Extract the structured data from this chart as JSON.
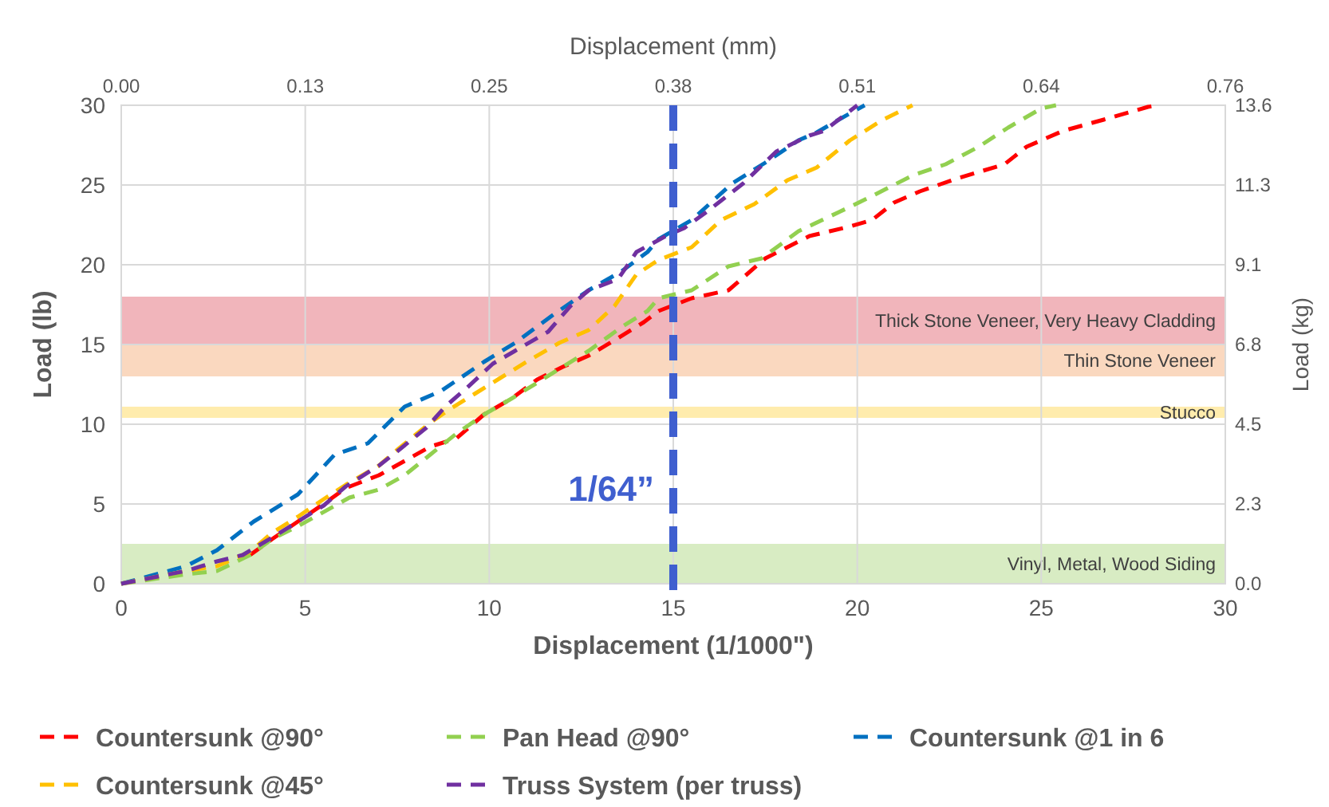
{
  "chart_data": {
    "type": "line",
    "xlabel": "Displacement (1/1000\")",
    "ylabel": "Load (lb)",
    "y2label": "Load (kg)",
    "x2label": "Displacement (mm)",
    "xlim": [
      0,
      30
    ],
    "xticks": [
      0,
      5,
      10,
      15,
      20,
      25,
      30
    ],
    "ylim": [
      0,
      30
    ],
    "yticks": [
      0,
      5,
      10,
      15,
      20,
      25,
      30
    ],
    "x2lim": [
      0,
      0.762
    ],
    "x2ticks": [
      {
        "value": 0,
        "label": "0.00"
      },
      {
        "value": 0.127,
        "label": "0.13"
      },
      {
        "value": 0.254,
        "label": "0.25"
      },
      {
        "value": 0.381,
        "label": "0.38"
      },
      {
        "value": 0.508,
        "label": "0.51"
      },
      {
        "value": 0.635,
        "label": "0.64"
      },
      {
        "value": 0.762,
        "label": "0.76"
      }
    ],
    "y2lim": [
      0,
      13.608
    ],
    "y2ticks": [
      {
        "value": 0,
        "label": "0.0"
      },
      {
        "value": 2.268,
        "label": "2.3"
      },
      {
        "value": 4.536,
        "label": "4.5"
      },
      {
        "value": 6.804,
        "label": "6.8"
      },
      {
        "value": 9.072,
        "label": "9.1"
      },
      {
        "value": 11.34,
        "label": "11.3"
      },
      {
        "value": 13.608,
        "label": "13.6"
      }
    ],
    "grid": true,
    "legend": "bottom",
    "line_style": "dashed",
    "series": [
      {
        "name": "Countersunk @90°",
        "color": "#ff0000",
        "x": [
          3.5,
          4.1,
          4.8,
          5.5,
          6.1,
          7.0,
          8.4,
          9.1,
          9.85,
          10.6,
          11.3,
          12.0,
          12.7,
          13.5,
          14.2,
          14.6,
          15.5,
          16.5,
          17.5,
          18.7,
          19.8,
          20.4,
          21.0,
          21.7,
          22.7,
          24.0,
          24.6,
          25.6,
          26.7,
          27.9,
          28.2
        ],
        "values": [
          1.8,
          2.8,
          3.9,
          5.0,
          6.0,
          6.8,
          8.6,
          9.1,
          10.6,
          11.6,
          12.8,
          13.6,
          14.3,
          15.4,
          16.4,
          17.1,
          17.9,
          18.4,
          20.4,
          21.8,
          22.4,
          22.8,
          23.9,
          24.6,
          25.4,
          26.3,
          27.4,
          28.4,
          29.1,
          29.9,
          30
        ]
      },
      {
        "name": "Pan Head @90°",
        "color": "#92d050",
        "x": [
          0,
          1.8,
          2.6,
          3.5,
          4.1,
          4.8,
          6.2,
          7.0,
          7.7,
          8.4,
          9.1,
          9.85,
          10.6,
          11.3,
          12.0,
          12.7,
          13.6,
          14.3,
          14.6,
          15.5,
          16.5,
          17.4,
          18.4,
          19.5,
          20.4,
          21.5,
          22.4,
          23.3,
          24.1,
          25.0,
          25.4
        ],
        "values": [
          0,
          0.6,
          0.8,
          1.8,
          2.8,
          3.6,
          5.4,
          5.9,
          6.8,
          8.1,
          9.4,
          10.6,
          11.6,
          12.6,
          13.6,
          14.6,
          16.1,
          17.1,
          17.9,
          18.4,
          19.9,
          20.4,
          22.1,
          23.3,
          24.3,
          25.6,
          26.3,
          27.4,
          28.6,
          29.8,
          30
        ]
      },
      {
        "name": "Countersunk @1 in 6",
        "color": "#0070c0",
        "x": [
          0,
          1.76,
          2.6,
          3.6,
          4.8,
          5.8,
          6.7,
          7.7,
          8.7,
          9.85,
          10.7,
          11.7,
          12.7,
          13.6,
          14.3,
          14.6,
          15.5,
          16.6,
          17.5,
          18.4,
          18.9,
          19.5,
          20.2
        ],
        "values": [
          0,
          1.1,
          2.1,
          3.9,
          5.6,
          8.1,
          8.8,
          11.1,
          12.1,
          13.9,
          15.1,
          16.8,
          18.4,
          19.6,
          20.8,
          21.6,
          22.8,
          25.1,
          26.4,
          27.8,
          28.3,
          29.1,
          30
        ]
      },
      {
        "name": "Countersunk @45°",
        "color": "#ffc000",
        "x": [
          0,
          1.76,
          2.6,
          3.5,
          4.1,
          4.8,
          5.5,
          6.1,
          7.0,
          7.5,
          8.4,
          8.9,
          9.6,
          10.3,
          11.0,
          11.9,
          12.7,
          13.4,
          14.0,
          14.6,
          15.5,
          16.3,
          17.2,
          18.1,
          18.9,
          19.8,
          20.7,
          21.5
        ],
        "values": [
          0,
          0.8,
          1.1,
          2.0,
          3.2,
          4.2,
          5.3,
          6.2,
          7.4,
          8.4,
          10.1,
          10.9,
          11.9,
          12.9,
          13.9,
          15.1,
          15.9,
          17.4,
          19.4,
          20.3,
          21.1,
          22.8,
          23.8,
          25.3,
          26.1,
          27.8,
          29.1,
          30
        ]
      },
      {
        "name": "Truss System (per truss)",
        "color": "#7030a0",
        "x": [
          0,
          1.76,
          2.6,
          3.3,
          4.1,
          4.8,
          5.5,
          6.1,
          7.0,
          7.5,
          8.3,
          8.8,
          9.4,
          10.1,
          10.7,
          11.6,
          12.2,
          12.7,
          13.5,
          14.0,
          14.8,
          15.3,
          15.9,
          16.9,
          17.8,
          18.7,
          19.1,
          20.0
        ],
        "values": [
          0,
          0.8,
          1.4,
          1.8,
          2.9,
          3.9,
          4.9,
          6.1,
          7.4,
          8.3,
          9.8,
          11.1,
          12.3,
          13.8,
          14.6,
          15.8,
          17.4,
          18.4,
          19.1,
          20.8,
          21.8,
          22.3,
          23.3,
          25.1,
          27.1,
          28.1,
          28.4,
          30
        ]
      }
    ],
    "bands": [
      {
        "axis": "y",
        "from": 15,
        "to": 18,
        "label": "Thick Stone Veneer, Very Heavy Cladding",
        "color": "#e05a68"
      },
      {
        "axis": "y",
        "from": 13,
        "to": 15,
        "label": "Thin Stone Veneer",
        "color": "#f4a870"
      },
      {
        "axis": "y",
        "from": 10.4,
        "to": 11.1,
        "label": "Stucco",
        "color": "#ffd54a"
      },
      {
        "axis": "y",
        "from": 0,
        "to": 2.5,
        "label": "Vinyl, Metal, Wood Siding",
        "color": "#a9d47a"
      }
    ],
    "ref_lines": [
      {
        "axis": "x",
        "value": 15,
        "label": "1/64”",
        "color": "#3f5fcf",
        "line_style": "dashed"
      }
    ]
  }
}
